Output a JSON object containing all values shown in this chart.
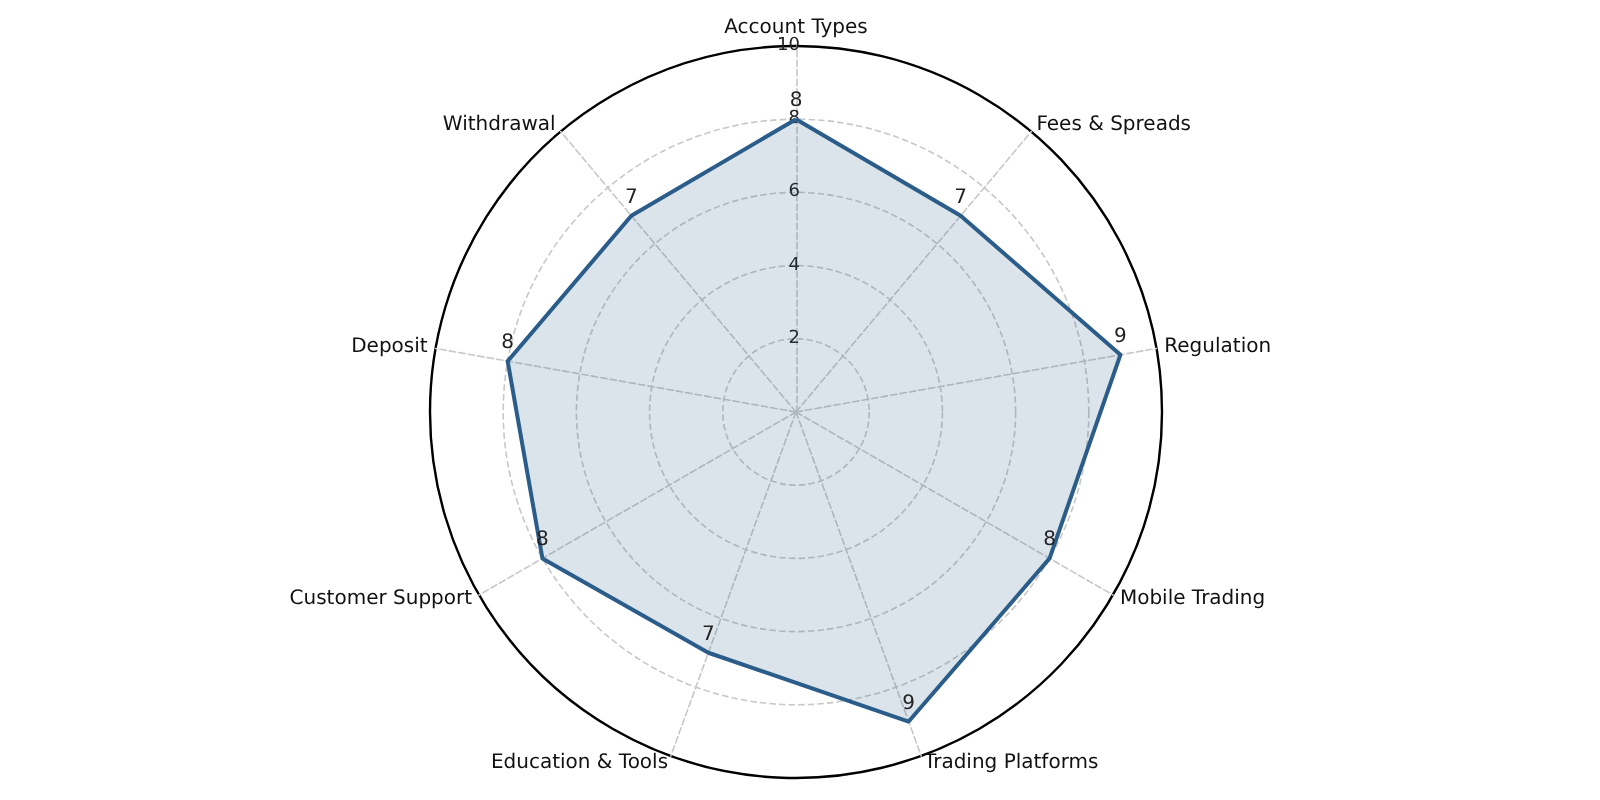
{
  "chart_data": {
    "type": "radar",
    "categories": [
      "Account Types",
      "Fees & Spreads",
      "Regulation",
      "Mobile Trading",
      "Trading Platforms",
      "Education & Tools",
      "Customer Support",
      "Deposit",
      "Withdrawal"
    ],
    "series": [
      {
        "color": "#2c5d8a",
        "values": [
          8,
          7,
          9,
          8,
          9,
          7,
          8,
          8,
          7
        ]
      }
    ],
    "ylim": [
      0,
      10
    ],
    "yticks": [
      2,
      4,
      6,
      8,
      10
    ],
    "data_labels": true,
    "grid": true
  }
}
